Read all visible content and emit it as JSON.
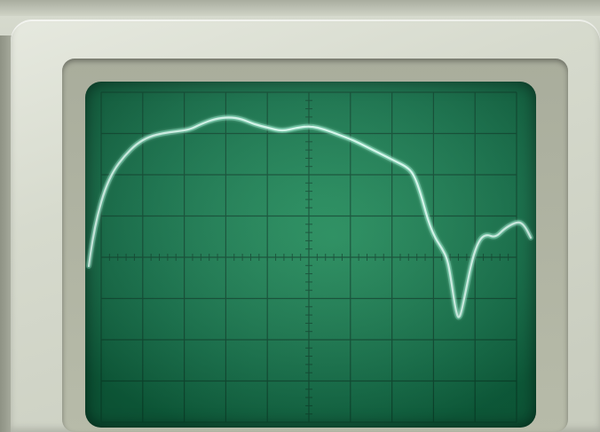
{
  "screen": {
    "grid_columns": 10,
    "grid_rows": 8,
    "minor_ticks_per_division": 5
  },
  "trace": {
    "color": "#d9fff2",
    "glow": "#7dffd0"
  },
  "colors": {
    "phosphor_bg": "#12734a",
    "graticule": "#0a4a2f",
    "bezel": "#d6dacd"
  }
}
